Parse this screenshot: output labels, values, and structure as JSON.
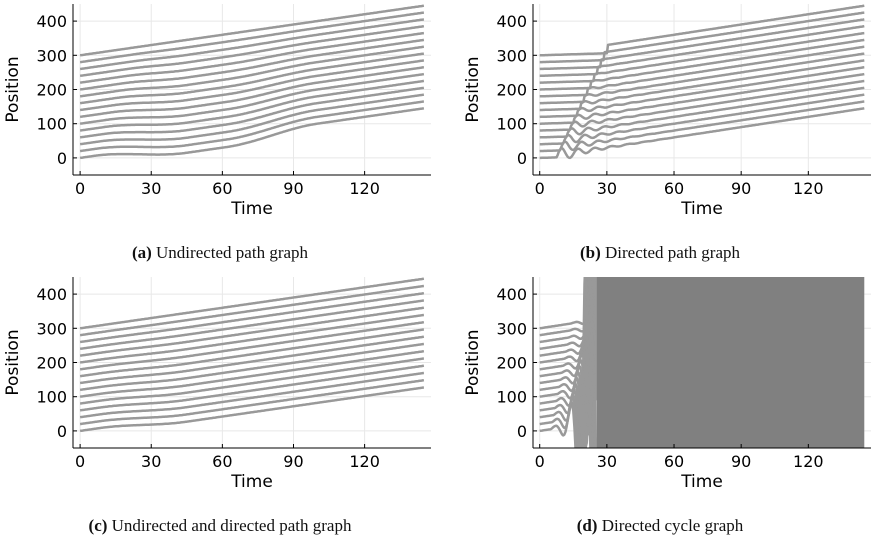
{
  "chart_data": [
    {
      "type": "line",
      "panel": "a",
      "caption_label": "(a)",
      "caption_text": "Undirected path graph",
      "xlabel": "Time",
      "ylabel": "Position",
      "xlim": [
        -3,
        148
      ],
      "ylim": [
        -50,
        450
      ],
      "xticks": [
        0,
        30,
        60,
        90,
        120
      ],
      "yticks": [
        0,
        100,
        200,
        300,
        400
      ],
      "grid": true,
      "num_vehicles": 16,
      "spacing": 20,
      "speed": 1.0,
      "x_end": 145,
      "behavior": "smooth_wave",
      "series_color": "#999999"
    },
    {
      "type": "line",
      "panel": "b",
      "caption_label": "(b)",
      "caption_text": "Directed path graph",
      "xlabel": "Time",
      "ylabel": "Position",
      "xlim": [
        -3,
        148
      ],
      "ylim": [
        -50,
        450
      ],
      "xticks": [
        0,
        30,
        60,
        90,
        120
      ],
      "yticks": [
        0,
        100,
        200,
        300,
        400
      ],
      "grid": true,
      "num_vehicles": 16,
      "spacing": 20,
      "speed": 1.0,
      "x_end": 145,
      "behavior": "damped_oscillation",
      "series_color": "#999999"
    },
    {
      "type": "line",
      "panel": "c",
      "caption_label": "(c)",
      "caption_text": "Undirected and directed path graph",
      "xlabel": "Time",
      "ylabel": "Position",
      "xlim": [
        -3,
        148
      ],
      "ylim": [
        -50,
        450
      ],
      "xticks": [
        0,
        30,
        60,
        90,
        120
      ],
      "yticks": [
        0,
        100,
        200,
        300,
        400
      ],
      "grid": true,
      "num_vehicles": 16,
      "spacing": 20,
      "speed": 1.0,
      "x_end": 145,
      "behavior": "kink",
      "series_color": "#999999"
    },
    {
      "type": "line",
      "panel": "d",
      "caption_label": "(d)",
      "caption_text": "Directed cycle graph",
      "xlabel": "Time",
      "ylabel": "Position",
      "xlim": [
        -3,
        148
      ],
      "ylim": [
        -50,
        450
      ],
      "xticks": [
        0,
        30,
        60,
        90,
        120
      ],
      "yticks": [
        0,
        100,
        200,
        300,
        400
      ],
      "grid": true,
      "num_vehicles": 16,
      "spacing": 20,
      "speed": 1.0,
      "x_end": 145,
      "behavior": "unstable",
      "blowup_time": 24,
      "series_color": "#999999",
      "fill_color": "#808080"
    }
  ]
}
